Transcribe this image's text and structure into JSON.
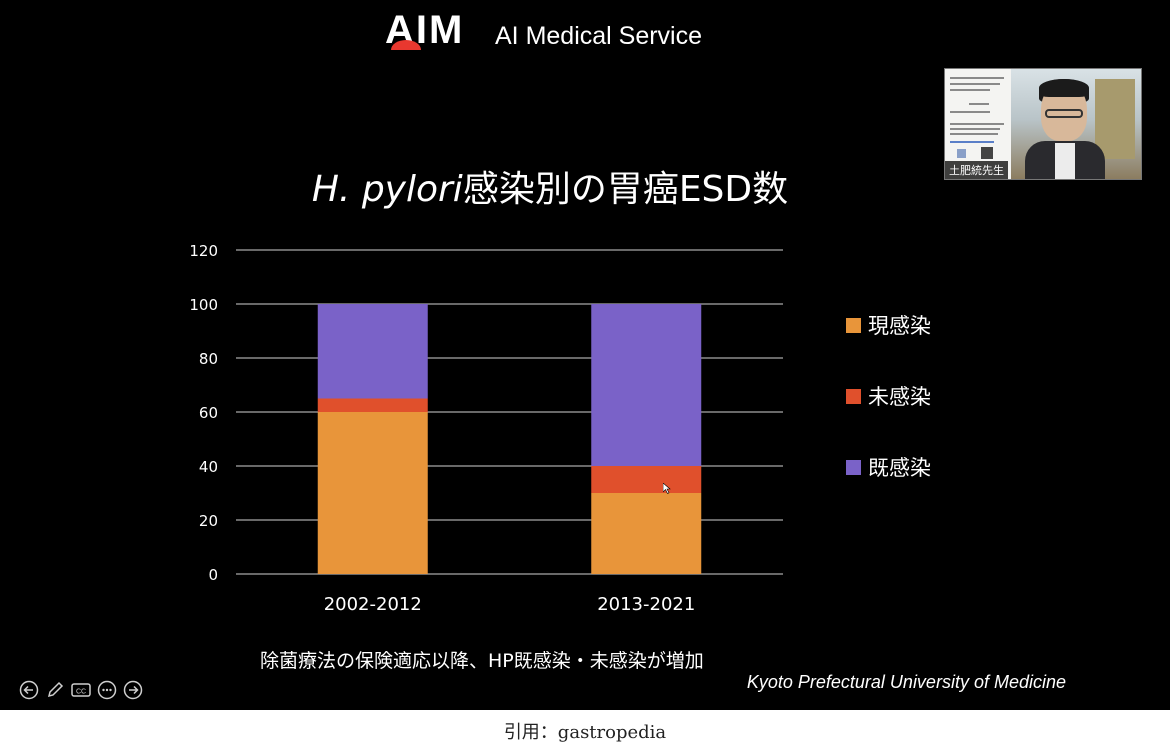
{
  "header": {
    "logo_text": "AIM",
    "service_name": "AI Medical Service"
  },
  "speaker": {
    "name_tag": "土肥統先生"
  },
  "slide": {
    "title_italic": "H. pylori",
    "title_rest": "感染別の胃癌ESD数",
    "caption": "除菌療法の保険適応以降、HP既感染・未感染が増加",
    "credit": "Kyoto Prefectural University of Medicine"
  },
  "legend": [
    {
      "label": "現感染",
      "color": "#e8953a"
    },
    {
      "label": "未感染",
      "color": "#e0502c"
    },
    {
      "label": "既感染",
      "color": "#7a62c8"
    }
  ],
  "chart_data": {
    "type": "bar",
    "stacked": true,
    "categories": [
      "2002-2012",
      "2013-2021"
    ],
    "series": [
      {
        "name": "現感染",
        "values": [
          60,
          30
        ],
        "color": "#e8953a"
      },
      {
        "name": "未感染",
        "values": [
          5,
          10
        ],
        "color": "#e0502c"
      },
      {
        "name": "既感染",
        "values": [
          35,
          60
        ],
        "color": "#7a62c8"
      }
    ],
    "yticks": [
      "0",
      "20",
      "40",
      "60",
      "80",
      "100",
      "120"
    ],
    "ylim": [
      0,
      120
    ],
    "grid": true,
    "legend_position": "right"
  },
  "controls": [
    {
      "name": "prev-slide-icon"
    },
    {
      "name": "pen-icon"
    },
    {
      "name": "captions-icon"
    },
    {
      "name": "more-icon"
    },
    {
      "name": "next-slide-icon"
    }
  ],
  "citation": "引用：gastropedia"
}
